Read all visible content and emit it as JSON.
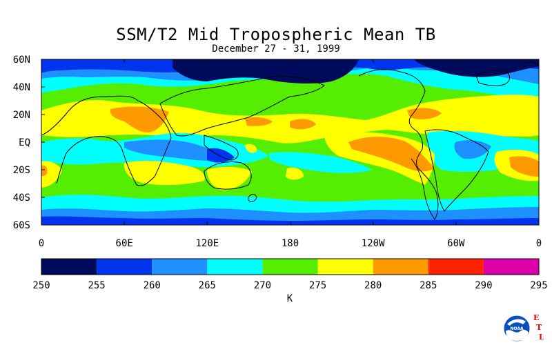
{
  "title": "SSM/T2 Mid Tropospheric Mean TB",
  "subtitle": "December 27 - 31, 1999",
  "y_axis_labels": [
    "60N",
    "40N",
    "20N",
    "EQ",
    "20S",
    "40S",
    "60S"
  ],
  "x_axis_labels": [
    "0",
    "60E",
    "120E",
    "180",
    "120W",
    "60W",
    "0"
  ],
  "colorbar": {
    "ticks": [
      "250",
      "255",
      "260",
      "265",
      "270",
      "275",
      "280",
      "285",
      "290",
      "295"
    ],
    "colors": [
      "#000a5c",
      "#0033ee",
      "#1e90ff",
      "#00ffff",
      "#55ee00",
      "#ffff00",
      "#ff9900",
      "#ff2200",
      "#dd00aa"
    ],
    "unit": "K"
  },
  "logo": {
    "text": "NOAA",
    "letters": [
      "E",
      "T",
      "L"
    ],
    "letter_color": "#dd0000"
  }
}
